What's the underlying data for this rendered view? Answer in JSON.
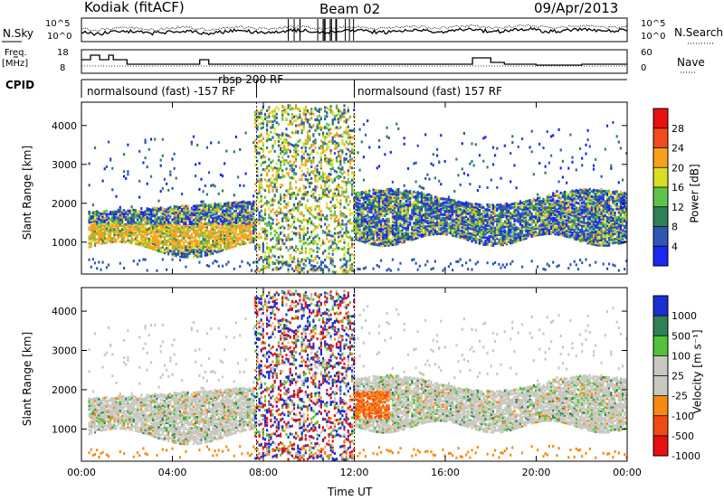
{
  "header": {
    "station": "Kodiak (fitACF)",
    "beam": "Beam 02",
    "date": "09/Apr/2013"
  },
  "left_labels": {
    "nsky": "N.Sky",
    "freq": "Freq.",
    "freq_unit": "[MHz]",
    "cpid": "CPID"
  },
  "right_labels": {
    "nsearch": "N.Search",
    "nave": "Nave"
  },
  "nsky_axis": {
    "ticks": [
      "10^5",
      "10^0"
    ]
  },
  "nsearch_axis": {
    "ticks": [
      "10^5",
      "10^0"
    ]
  },
  "freq_axis": {
    "ticks": [
      "18",
      "8"
    ]
  },
  "nave_axis": {
    "ticks": [
      "60",
      "0"
    ]
  },
  "cpid_segments": [
    {
      "label": "normalsound (fast) -157 RF"
    },
    {
      "label": "rbsp 200 RF"
    },
    {
      "label": "normalsound (fast) 157 RF"
    }
  ],
  "chart_data": [
    {
      "type": "heatmap",
      "panel": "power",
      "ylabel": "Slant Range [km]",
      "ylim": [
        180,
        4600
      ],
      "yticks": [
        1000,
        2000,
        3000,
        4000
      ],
      "colorbar": {
        "label": "Power [dB]",
        "levels": [
          "28",
          "24",
          "20",
          "16",
          "12",
          "8",
          "4"
        ],
        "colors": [
          "#e81010",
          "#f34b1a",
          "#f7a21f",
          "#d9e022",
          "#5fc34a",
          "#2f7f57",
          "#2f56b5",
          "#1a27f0"
        ]
      }
    },
    {
      "type": "heatmap",
      "panel": "velocity",
      "ylabel": "Slant Range [km]",
      "ylim": [
        180,
        4600
      ],
      "yticks": [
        1000,
        2000,
        3000,
        4000
      ],
      "colorbar": {
        "label": "Velocity [m s⁻¹]",
        "levels": [
          "1000",
          "500",
          "100",
          "25",
          "-25",
          "-100",
          "-500",
          "-1000"
        ],
        "colors": [
          "#1a2fd0",
          "#2f7f57",
          "#52c23a",
          "#c8c8c0",
          "#c8c8c0",
          "#f78a12",
          "#f24a14",
          "#e81010"
        ]
      }
    }
  ],
  "x_axis": {
    "label": "Time UT",
    "ticks": [
      "00:00",
      "04:00",
      "08:00",
      "12:00",
      "16:00",
      "20:00",
      "00:00"
    ]
  }
}
